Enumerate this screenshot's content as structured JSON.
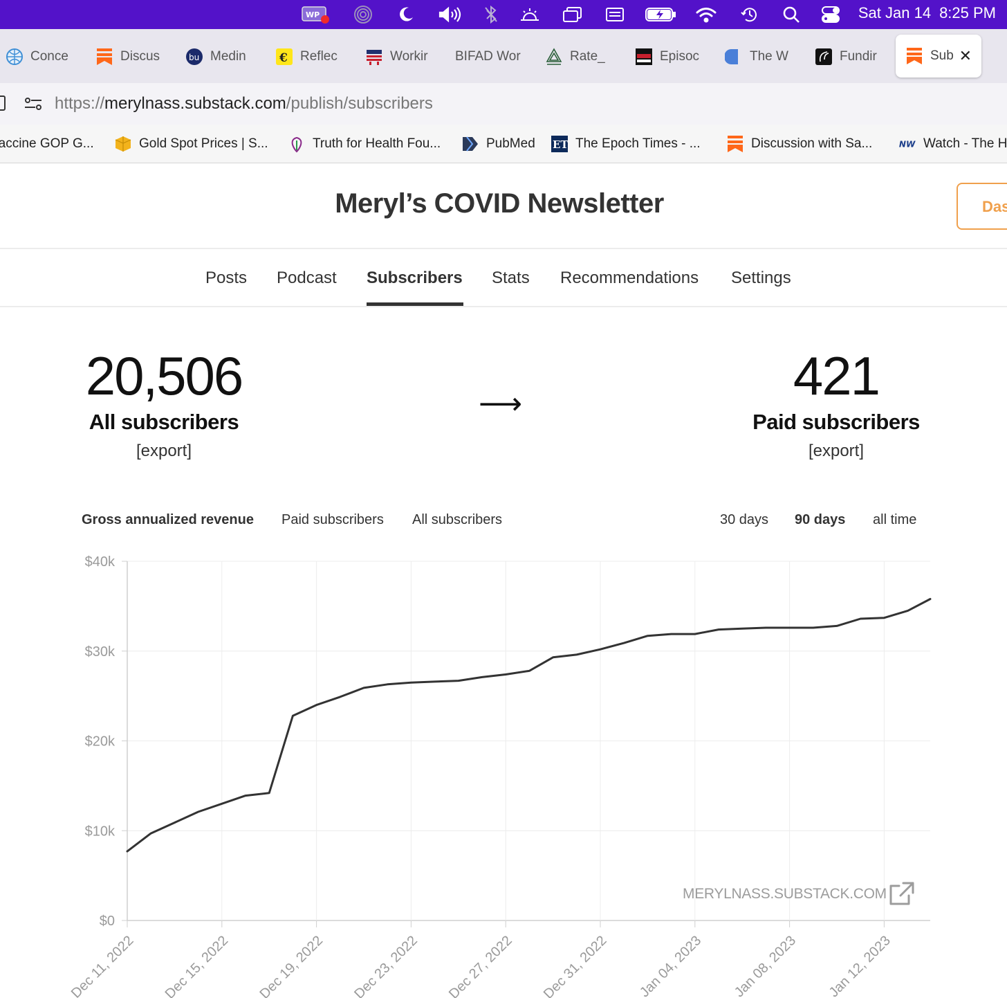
{
  "menubar": {
    "icons": [
      "wp-icon",
      "podcast-icon",
      "moon-icon",
      "volume-icon",
      "bluetooth-icon",
      "brightness-icon",
      "window-icon",
      "keyboard-icon",
      "battery-icon",
      "wifi-icon",
      "time-machine-icon",
      "search-icon",
      "control-center-icon"
    ],
    "date": "Sat Jan 14",
    "time": "8:25 PM"
  },
  "tabs": [
    {
      "label": "Conce",
      "icon": "who-globe-icon"
    },
    {
      "label": "Discus",
      "icon": "substack-icon"
    },
    {
      "label": "Medin",
      "icon": "medin-icon"
    },
    {
      "label": "Reflec",
      "icon": "reflec-icon"
    },
    {
      "label": "Workir",
      "icon": "flag-icon"
    },
    {
      "label": "BIFAD Wor",
      "icon": ""
    },
    {
      "label": "Rate_",
      "icon": "tree-icon"
    },
    {
      "label": "Episoc",
      "icon": "corbett-report-icon"
    },
    {
      "label": "The W",
      "icon": "blue-shield-icon"
    },
    {
      "label": "Fundir",
      "icon": "fundir-icon"
    },
    {
      "label": "Sub",
      "icon": "substack-icon",
      "active": true
    }
  ],
  "address": {
    "prefix": "https://",
    "domain": "merylnass.substack.com",
    "path": "/publish/subscribers"
  },
  "bookmarks": [
    {
      "label": "'accine GOP G..."
    },
    {
      "label": "Gold Spot Prices | S...",
      "icon": "gold-cube-icon"
    },
    {
      "label": "Truth for Health Fou...",
      "icon": "tfh-icon"
    },
    {
      "label": "PubMed",
      "icon": "pubmed-icon"
    },
    {
      "label": "The Epoch Times - ...",
      "icon": "epoch-times-icon"
    },
    {
      "label": "Discussion with Sa...",
      "icon": "substack-icon"
    },
    {
      "label": "Watch - The H",
      "icon": "watch-icon"
    }
  ],
  "header": {
    "title": "Meryl’s COVID Newsletter",
    "dashboard_label": "Das"
  },
  "nav": {
    "items": [
      "Posts",
      "Podcast",
      "Subscribers",
      "Stats",
      "Recommendations",
      "Settings"
    ],
    "active": "Subscribers"
  },
  "stats": {
    "all_count": "20,506",
    "all_label": "All subscribers",
    "export_label": "[export]",
    "arrow": "⟶",
    "paid_count": "421",
    "paid_label": "Paid subscribers"
  },
  "controls": {
    "metrics": [
      "Gross annualized revenue",
      "Paid subscribers",
      "All subscribers"
    ],
    "active_metric": "Gross annualized revenue",
    "ranges": [
      "30 days",
      "90 days",
      "all time"
    ],
    "active_range": "90 days"
  },
  "watermark": "MERYLNASS.SUBSTACK.COM",
  "chart_data": {
    "type": "line",
    "ylim": [
      0,
      40000
    ],
    "yticks": [
      0,
      10000,
      20000,
      30000,
      40000
    ],
    "ytick_labels": [
      "$0",
      "$10k",
      "$20k",
      "$30k",
      "$40k"
    ],
    "xtick_labels": [
      "Dec 11, 2022",
      "Dec 15, 2022",
      "Dec 19, 2022",
      "Dec 23, 2022",
      "Dec 27, 2022",
      "Dec 31, 2022",
      "Jan 04, 2023",
      "Jan 08, 2023",
      "Jan 12, 2023"
    ],
    "grid": true,
    "series": [
      {
        "x": [
          "2022-12-11",
          "2022-12-12",
          "2022-12-13",
          "2022-12-14",
          "2022-12-15",
          "2022-12-16",
          "2022-12-17",
          "2022-12-18",
          "2022-12-19",
          "2022-12-20",
          "2022-12-21",
          "2022-12-22",
          "2022-12-23",
          "2022-12-24",
          "2022-12-25",
          "2022-12-26",
          "2022-12-27",
          "2022-12-28",
          "2022-12-29",
          "2022-12-30",
          "2022-12-31",
          "2023-01-01",
          "2023-01-02",
          "2023-01-03",
          "2023-01-04",
          "2023-01-05",
          "2023-01-06",
          "2023-01-07",
          "2023-01-08",
          "2023-01-09",
          "2023-01-10",
          "2023-01-11",
          "2023-01-12",
          "2023-01-13",
          "2023-01-14"
        ],
        "values": [
          7700,
          9700,
          10900,
          12100,
          13000,
          13900,
          14200,
          22800,
          24000,
          24900,
          25900,
          26300,
          26500,
          26600,
          26700,
          27100,
          27400,
          27800,
          29300,
          29600,
          30200,
          30900,
          31700,
          31900,
          31900,
          32400,
          32500,
          32600,
          32600,
          32600,
          32800,
          33600,
          33700,
          34500,
          35800
        ]
      }
    ]
  }
}
